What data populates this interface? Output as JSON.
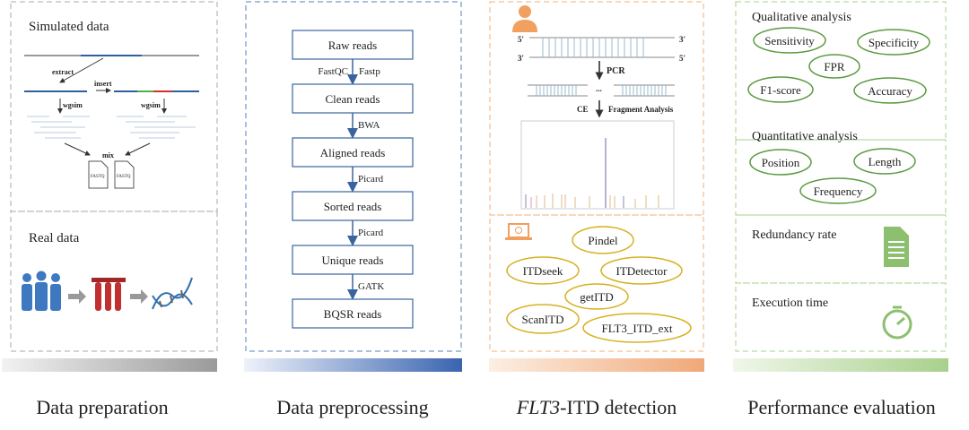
{
  "colors": {
    "gray": "#9e9e9e",
    "blue": "#2f5f9e",
    "orange": "#f0b07a",
    "green": "#8cbf6e"
  },
  "panel1": {
    "simulated_title": "Simulated data",
    "extract": "extract",
    "insert": "insert",
    "wgsim": "wgsim",
    "mix": "mix",
    "fastq": "FASTQ",
    "real_title": "Real data",
    "icons": [
      "people-icon",
      "test-tubes-icon",
      "dna-icon"
    ]
  },
  "panel2": {
    "steps": [
      "Raw reads",
      "Clean reads",
      "Aligned reads",
      "Sorted reads",
      "Unique reads",
      "BQSR reads"
    ],
    "tools": [
      [
        "FastQC",
        "Fastp"
      ],
      [
        "BWA"
      ],
      [
        "Picard"
      ],
      [
        "Picard"
      ],
      [
        "GATK"
      ]
    ]
  },
  "panel3": {
    "p5": "5'",
    "p3": "3'",
    "pcr": "PCR",
    "ce": "CE",
    "fragment": "Fragment Analysis",
    "dots": "...",
    "tools": [
      "Pindel",
      "ITDseek",
      "ITDetector",
      "getITD",
      "ScanITD",
      "FLT3_ITD_ext"
    ]
  },
  "panel4": {
    "qualitative": "Qualitative analysis",
    "qual_metrics": [
      "Sensitivity",
      "Specificity",
      "FPR",
      "F1-score",
      "Accuracy"
    ],
    "quantitative": "Quantitative analysis",
    "quant_metrics": [
      "Position",
      "Length",
      "Frequency"
    ],
    "redundancy": "Redundancy rate",
    "execution": "Execution time"
  },
  "labels": {
    "prep": "Data preparation",
    "preproc": "Data preprocessing",
    "detect_italic": "FLT3",
    "detect_rest": "-ITD detection",
    "eval": "Performance evaluation"
  }
}
